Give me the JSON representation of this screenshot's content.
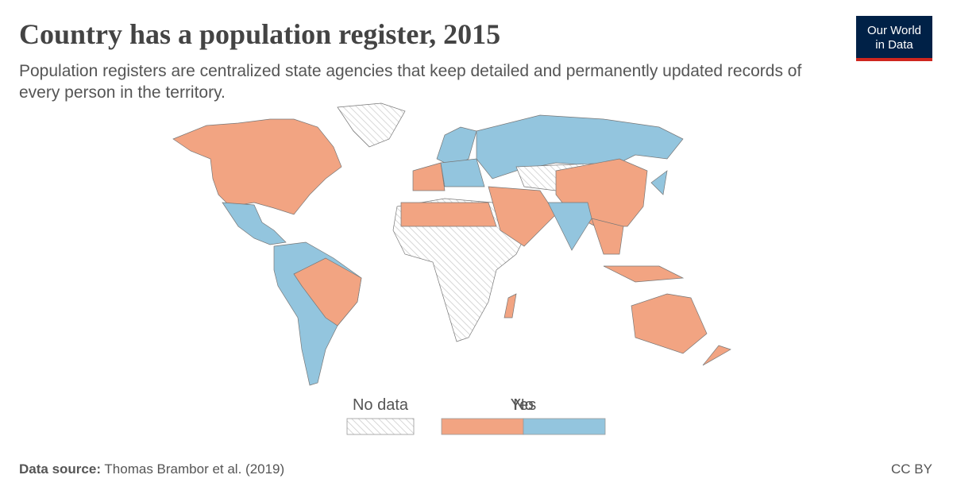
{
  "header": {
    "title": "Country has a population register, 2015",
    "subtitle": "Population registers are centralized state agencies that keep detailed and permanently updated records of every person in the territory.",
    "logo": [
      "Our World",
      "in Data"
    ]
  },
  "legend": {
    "items": [
      {
        "label": "No data",
        "color": "#ffffff"
      },
      {
        "label": "No",
        "color": "#f2a482"
      },
      {
        "label": "Yes",
        "color": "#93c5de"
      }
    ]
  },
  "footer": {
    "source_label": "Data source:",
    "source": "Thomas Brambor et al. (2019)",
    "license": "CC BY"
  }
}
